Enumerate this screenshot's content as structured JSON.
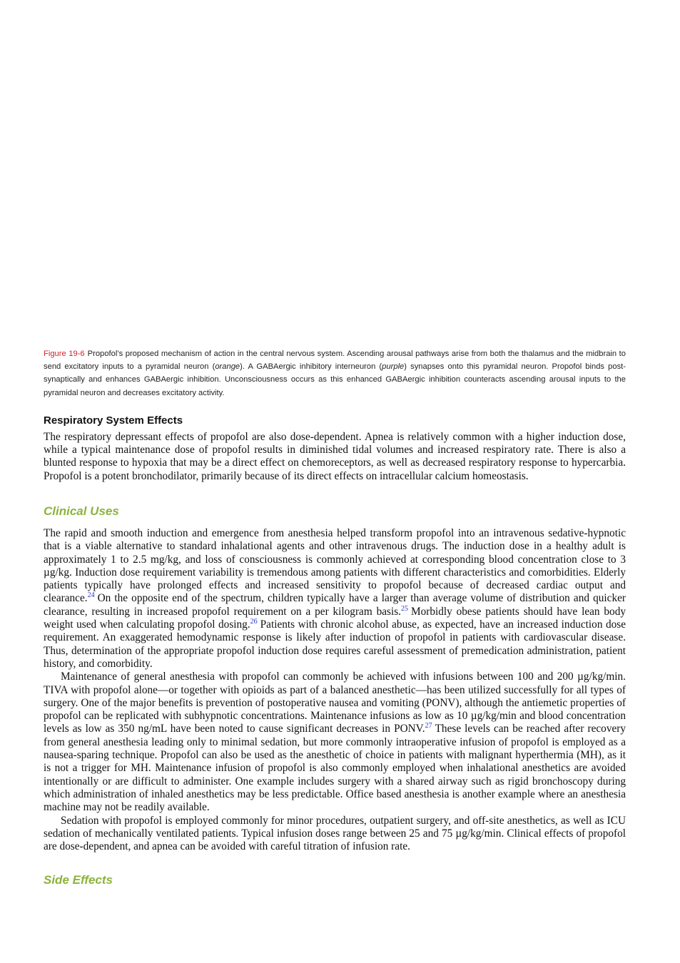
{
  "figure_caption": {
    "label": "Figure 19-6",
    "parts": [
      {
        "text": "Propofol’s proposed mechanism of action in the central nervous system. Ascending arousal pathways arise from both the thalamus and the midbrain to send excitatory inputs to a pyramidal neuron ("
      },
      {
        "italic": "orange"
      },
      {
        "text": "). A GABAergic inhibitory interneuron ("
      },
      {
        "italic": "purple"
      },
      {
        "text": ") synapses onto this pyramidal neuron. Propofol binds post-synaptically and enhances GABAergic inhibition. Unconsciousness occurs as this enhanced GABAergic inhibition counteracts ascending arousal inputs to the pyramidal neuron and decreases excitatory activity."
      }
    ]
  },
  "respiratory": {
    "heading": "Respiratory System Effects",
    "paragraph": "The respiratory depressant effects of propofol are also dose-dependent. Apnea is relatively common with a higher induction dose, while a typical maintenance dose of propofol results in diminished tidal volumes and increased respiratory rate. There is also a blunted response to hypoxia that may be a direct effect on chemoreceptors, as well as decreased respiratory response to hypercarbia. Propofol is a potent bronchodilator, primarily because of its direct effects on intracellular calcium homeostasis."
  },
  "clinical_uses": {
    "heading": "Clinical Uses",
    "paragraphs": [
      {
        "parts": [
          {
            "text": "The rapid and smooth induction and emergence from anesthesia helped transform propofol into an intravenous sedative-hypnotic that is a viable alternative to standard inhalational agents and other intravenous drugs. The induction dose in a healthy adult is approximately 1 to 2.5 mg/kg, and loss of consciousness is commonly achieved at corresponding blood concentration close to 3 µg/kg. Induction dose requirement variability is tremendous among patients with different characteristics and comorbidities. Elderly patients typically have prolonged effects and increased sensitivity to propofol because of decreased cardiac output and clearance."
          },
          {
            "ref": "24"
          },
          {
            "text": "On the opposite end of the spectrum, children typically have a larger than average volume of distribution and quicker clearance, resulting in increased propofol requirement on a per kilogram basis."
          },
          {
            "ref": "25"
          },
          {
            "text": "Morbidly obese patients should have lean body weight used when calculating propofol dosing."
          },
          {
            "ref": "26"
          },
          {
            "text": "Patients with chronic alcohol abuse, as expected, have an increased induction dose requirement. An exaggerated hemodynamic response is likely after induction of propofol in patients with cardiovascular disease. Thus, determination of the appropriate propofol induction dose requires careful assessment of premedication administration, patient history, and comorbidity."
          }
        ]
      },
      {
        "parts": [
          {
            "text": "Maintenance of general anesthesia with propofol can commonly be achieved with infusions between 100 and 200 µg/kg/min. TIVA with propofol alone—or together with opioids as part of a balanced anesthetic—has been utilized successfully for all types of surgery. One of the major benefits is prevention of postoperative nausea and vomiting (PONV), although the antiemetic properties of propofol can be replicated with subhypnotic concentrations. Maintenance infusions as low as 10 µg/kg/min and blood concentration levels as low as 350 ng/mL have been noted to cause significant decreases in PONV."
          },
          {
            "ref": "27"
          },
          {
            "text": "These levels can be reached after recovery from general anesthesia leading only to minimal sedation, but more commonly intraoperative infusion of propofol is employed as a nausea-sparing technique. Propofol can also be used as the anesthetic of choice in patients with malignant hyperthermia (MH), as it is not a trigger for MH. Maintenance infusion of propofol is also commonly employed when inhalational anesthetics are avoided intentionally or are difficult to administer. One example includes surgery with a shared airway such as rigid bronchoscopy during which administration of inhaled anesthetics may be less predictable. Office based anesthesia is another example where an anesthesia machine may not be readily available."
          }
        ]
      },
      {
        "parts": [
          {
            "text": "Sedation with propofol is employed commonly for minor procedures, outpatient surgery, and off-site anesthetics, as well as ICU sedation of mechanically ventilated patients. Typical infusion doses range between 25 and 75 µg/kg/min. Clinical effects of propofol are dose-dependent, and apnea can be avoided with careful titration of infusion rate."
          }
        ]
      }
    ]
  },
  "side_effects": {
    "heading": "Side Effects"
  }
}
